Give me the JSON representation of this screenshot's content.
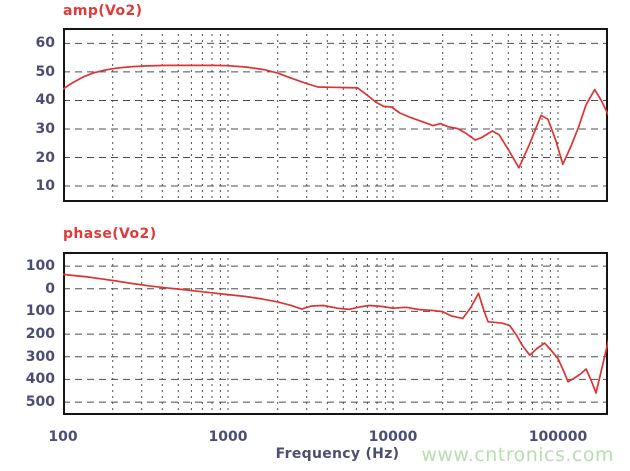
{
  "watermark": "www.cntronics.com",
  "x_axis": {
    "label": "Frequency (Hz)",
    "scale": "log",
    "min": 100,
    "max": 201000,
    "ticks": [
      {
        "value": 100,
        "label": "100"
      },
      {
        "value": 1000,
        "label": "1000"
      },
      {
        "value": 10000,
        "label": "10000"
      },
      {
        "value": 100000,
        "label": "100000"
      }
    ]
  },
  "colors": {
    "curve": "#dc3434",
    "title": "#e03a3a",
    "tick_label": "#4d4d73",
    "grid": "#4f4f4f",
    "border": "#151515",
    "watermark": "#b5dfae",
    "background": "#ffffff"
  },
  "chart_data": [
    {
      "id": "amp",
      "type": "line",
      "title": "amp(Vo2)",
      "xlabel": "Frequency (Hz)",
      "xscale": "log",
      "xlim": [
        100,
        201000
      ],
      "ylim": [
        4.4,
        65.4
      ],
      "grid": true,
      "yticks": [
        {
          "value": 60,
          "label": "60"
        },
        {
          "value": 50,
          "label": "50"
        },
        {
          "value": 40,
          "label": "40"
        },
        {
          "value": 30,
          "label": "30"
        },
        {
          "value": 20,
          "label": "20"
        },
        {
          "value": 10,
          "label": "10"
        }
      ],
      "series": [
        {
          "name": "amp(Vo2)",
          "points": [
            [
              100,
              44
            ],
            [
              115,
              46.3
            ],
            [
              132,
              48.2
            ],
            [
              152,
              49.6
            ],
            [
              178,
              50.6
            ],
            [
              210,
              51.3
            ],
            [
              255,
              51.8
            ],
            [
              320,
              52.1
            ],
            [
              430,
              52.3
            ],
            [
              600,
              52.3
            ],
            [
              820,
              52.3
            ],
            [
              1000,
              52.2
            ],
            [
              1300,
              51.7
            ],
            [
              1650,
              50.8
            ],
            [
              2000,
              49.6
            ],
            [
              2400,
              47.9
            ],
            [
              2900,
              46.2
            ],
            [
              3500,
              44.7
            ],
            [
              4300,
              44.6
            ],
            [
              5300,
              44.5
            ],
            [
              6100,
              44.4
            ],
            [
              7000,
              41.8
            ],
            [
              7900,
              39.3
            ],
            [
              8800,
              37.9
            ],
            [
              9800,
              37.7
            ],
            [
              11000,
              35.6
            ],
            [
              12800,
              34
            ],
            [
              15000,
              32.6
            ],
            [
              17500,
              31.2
            ],
            [
              19500,
              31.9
            ],
            [
              21500,
              30.8
            ],
            [
              24500,
              30.2
            ],
            [
              27500,
              28.6
            ],
            [
              31500,
              26.1
            ],
            [
              34500,
              27
            ],
            [
              40000,
              29.3
            ],
            [
              44000,
              28
            ],
            [
              50000,
              22.8
            ],
            [
              58000,
              16.4
            ],
            [
              67000,
              24.5
            ],
            [
              79000,
              34.8
            ],
            [
              87000,
              33.4
            ],
            [
              97000,
              26
            ],
            [
              107000,
              17.6
            ],
            [
              120000,
              24
            ],
            [
              133000,
              30.5
            ],
            [
              148000,
              38.5
            ],
            [
              167000,
              43.8
            ],
            [
              183000,
              40
            ],
            [
              204000,
              34.4
            ]
          ]
        }
      ]
    },
    {
      "id": "phase",
      "type": "line",
      "title": "phase(Vo2)",
      "xlabel": "Frequency (Hz)",
      "xscale": "log",
      "xlim": [
        100,
        201000
      ],
      "ylim": [
        -557,
        162
      ],
      "grid": true,
      "yticks": [
        {
          "value": 100,
          "label": "100"
        },
        {
          "value": 0,
          "label": "0"
        },
        {
          "value": -100,
          "label": "100"
        },
        {
          "value": -200,
          "label": "200"
        },
        {
          "value": -300,
          "label": "300"
        },
        {
          "value": -400,
          "label": "400"
        },
        {
          "value": -500,
          "label": "500"
        }
      ],
      "series": [
        {
          "name": "phase(Vo2)",
          "points": [
            [
              100,
              63
            ],
            [
              118,
              58
            ],
            [
              140,
              52
            ],
            [
              170,
              44
            ],
            [
              210,
              34
            ],
            [
              262,
              23
            ],
            [
              330,
              13
            ],
            [
              420,
              4
            ],
            [
              520,
              -3
            ],
            [
              650,
              -11
            ],
            [
              800,
              -18
            ],
            [
              1000,
              -26
            ],
            [
              1260,
              -34
            ],
            [
              1600,
              -45
            ],
            [
              2000,
              -58
            ],
            [
              2400,
              -73
            ],
            [
              2800,
              -90
            ],
            [
              3200,
              -76
            ],
            [
              3800,
              -74
            ],
            [
              4600,
              -86
            ],
            [
              5400,
              -91
            ],
            [
              6300,
              -80
            ],
            [
              7200,
              -74
            ],
            [
              8500,
              -78
            ],
            [
              10000,
              -86
            ],
            [
              12000,
              -82
            ],
            [
              14500,
              -92
            ],
            [
              17000,
              -95
            ],
            [
              20000,
              -101
            ],
            [
              22500,
              -120
            ],
            [
              26500,
              -131
            ],
            [
              29500,
              -85
            ],
            [
              33000,
              -20
            ],
            [
              35500,
              -95
            ],
            [
              37700,
              -146
            ],
            [
              41000,
              -148
            ],
            [
              46000,
              -152
            ],
            [
              51000,
              -162
            ],
            [
              56000,
              -204
            ],
            [
              61000,
              -252
            ],
            [
              67500,
              -293
            ],
            [
              74000,
              -266
            ],
            [
              83000,
              -240
            ],
            [
              91000,
              -272
            ],
            [
              100000,
              -308
            ],
            [
              108000,
              -362
            ],
            [
              115000,
              -410
            ],
            [
              126000,
              -394
            ],
            [
              137000,
              -376
            ],
            [
              148000,
              -354
            ],
            [
              159000,
              -405
            ],
            [
              170000,
              -460
            ],
            [
              204000,
              -216
            ]
          ]
        }
      ]
    }
  ]
}
